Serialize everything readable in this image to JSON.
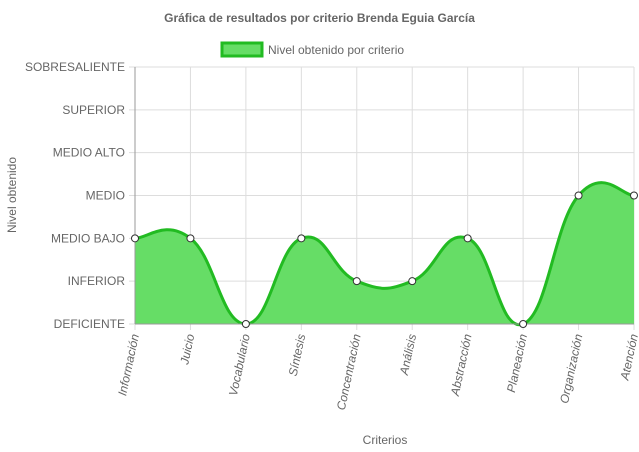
{
  "chart_data": {
    "type": "area",
    "title": "Gráfica de resultados por criterio Brenda Eguia García",
    "xlabel": "Criterios",
    "ylabel": "Nivel obtenido",
    "categories": [
      "Información",
      "Juicio",
      "Vocabulario",
      "Síntesis",
      "Concentración",
      "Análisis",
      "Abstracción",
      "Planeación",
      "Organización",
      "Atención"
    ],
    "y_levels": [
      "DEFICIENTE",
      "INFERIOR",
      "MEDIO BAJO",
      "MEDIO",
      "MEDIO ALTO",
      "SUPERIOR",
      "SOBRESALIENTE"
    ],
    "ylim": [
      0,
      6
    ],
    "series": [
      {
        "name": "Nivel obtenido por criterio",
        "values": [
          2,
          2,
          0,
          2,
          1,
          1,
          2,
          0,
          3,
          3
        ]
      }
    ],
    "legend_position": "top",
    "grid": true,
    "colors": {
      "fill": "#66dd66",
      "line": "#22bb22",
      "grid": "#dddddd",
      "axis": "#999999",
      "point_fill": "#ffffff",
      "point_stroke": "#333333"
    }
  }
}
